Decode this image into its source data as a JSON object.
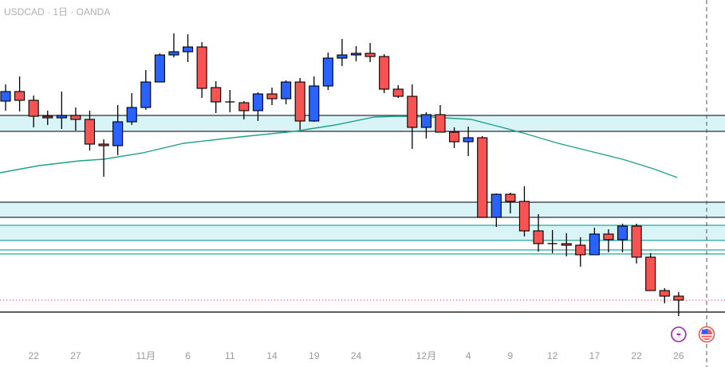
{
  "header": {
    "title": "USDCAD · 1日 · OANDA"
  },
  "colors": {
    "up": "#2962ff",
    "down": "#f85353",
    "zone_fill": "#d8f4f6",
    "zone_border_dark": "#2a2e39",
    "zone_border_teal": "#26a69a",
    "ma": "#22a08c",
    "last_price": "#e53935",
    "event_icon": "#9c27b0"
  },
  "chart_data": {
    "type": "candlestick",
    "title": "USDCAD · 1日 · OANDA",
    "ylim": [
      1.3739,
      1.42
    ],
    "xtick_labels": [
      {
        "index": 2,
        "label": "22"
      },
      {
        "index": 5,
        "label": "27"
      },
      {
        "index": 10,
        "label": "11月"
      },
      {
        "index": 13,
        "label": "6"
      },
      {
        "index": 16,
        "label": "11"
      },
      {
        "index": 19,
        "label": "14"
      },
      {
        "index": 22,
        "label": "19"
      },
      {
        "index": 25,
        "label": "24"
      },
      {
        "index": 30,
        "label": "12月"
      },
      {
        "index": 33,
        "label": "4"
      },
      {
        "index": 36,
        "label": "9"
      },
      {
        "index": 39,
        "label": "12"
      },
      {
        "index": 42,
        "label": "17"
      },
      {
        "index": 45,
        "label": "22"
      },
      {
        "index": 48,
        "label": "26"
      }
    ],
    "ohlc": [
      [
        1.4073,
        1.4094,
        1.4061,
        1.4085
      ],
      [
        1.4085,
        1.4104,
        1.406,
        1.4074
      ],
      [
        1.4074,
        1.408,
        1.404,
        1.4054
      ],
      [
        1.4054,
        1.4061,
        1.4043,
        1.4052
      ],
      [
        1.4052,
        1.4085,
        1.4038,
        1.4055
      ],
      [
        1.4055,
        1.4065,
        1.4036,
        1.405
      ],
      [
        1.405,
        1.4061,
        1.4011,
        1.4019
      ],
      [
        1.4019,
        1.4025,
        1.3978,
        1.4017
      ],
      [
        1.4017,
        1.4068,
        1.4005,
        1.4047
      ],
      [
        1.4047,
        1.4083,
        1.4043,
        1.4065
      ],
      [
        1.4065,
        1.4112,
        1.4062,
        1.4097
      ],
      [
        1.4097,
        1.4133,
        1.4097,
        1.4131
      ],
      [
        1.4131,
        1.4158,
        1.4128,
        1.4135
      ],
      [
        1.4135,
        1.4157,
        1.4122,
        1.4141
      ],
      [
        1.4141,
        1.4147,
        1.4077,
        1.4089
      ],
      [
        1.409,
        1.4098,
        1.4058,
        1.4072
      ],
      [
        1.4072,
        1.4087,
        1.4059,
        1.4072
      ],
      [
        1.4071,
        1.4073,
        1.405,
        1.4061
      ],
      [
        1.4061,
        1.4084,
        1.4048,
        1.4082
      ],
      [
        1.4082,
        1.409,
        1.4068,
        1.4076
      ],
      [
        1.4076,
        1.4099,
        1.4069,
        1.4097
      ],
      [
        1.4097,
        1.4102,
        1.4037,
        1.4048
      ],
      [
        1.4048,
        1.4104,
        1.4047,
        1.4092
      ],
      [
        1.4092,
        1.4134,
        1.4087,
        1.4127
      ],
      [
        1.4127,
        1.4151,
        1.4117,
        1.4131
      ],
      [
        1.4131,
        1.4142,
        1.4123,
        1.4133
      ],
      [
        1.4133,
        1.4146,
        1.4122,
        1.4129
      ],
      [
        1.4129,
        1.4132,
        1.4083,
        1.4088
      ],
      [
        1.4088,
        1.4093,
        1.4077,
        1.4079
      ],
      [
        1.4079,
        1.4094,
        1.4013,
        1.404
      ],
      [
        1.404,
        1.4059,
        1.4026,
        1.4056
      ],
      [
        1.4056,
        1.4068,
        1.4034,
        1.4034
      ],
      [
        1.4034,
        1.404,
        1.4014,
        1.4022
      ],
      [
        1.4022,
        1.4041,
        1.4004,
        1.4027
      ],
      [
        1.4027,
        1.4029,
        1.3927,
        1.3927
      ],
      [
        1.3927,
        1.3957,
        1.3915,
        1.3956
      ],
      [
        1.3956,
        1.3958,
        1.3932,
        1.3947
      ],
      [
        1.3947,
        1.3966,
        1.3903,
        1.391
      ],
      [
        1.391,
        1.3931,
        1.3884,
        1.3894
      ],
      [
        1.3894,
        1.3911,
        1.3882,
        1.3894
      ],
      [
        1.3894,
        1.3907,
        1.3878,
        1.3892
      ],
      [
        1.3892,
        1.3902,
        1.3865,
        1.388
      ],
      [
        1.388,
        1.3914,
        1.388,
        1.3906
      ],
      [
        1.3906,
        1.3912,
        1.3883,
        1.3899
      ],
      [
        1.3899,
        1.3919,
        1.3883,
        1.3916
      ],
      [
        1.3916,
        1.3919,
        1.3869,
        1.3877
      ],
      [
        1.3877,
        1.3882,
        1.3835,
        1.3835
      ],
      [
        1.3835,
        1.3838,
        1.3819,
        1.3828
      ],
      [
        1.3828,
        1.3833,
        1.3803,
        1.3823
      ]
    ],
    "moving_average": [
      [
        -0.4,
        1.3983
      ],
      [
        2.4,
        1.3992
      ],
      [
        5.3,
        1.3998
      ],
      [
        7,
        1.4
      ],
      [
        9.8,
        1.4008
      ],
      [
        12.7,
        1.402
      ],
      [
        16.7,
        1.4028
      ],
      [
        20.6,
        1.4035
      ],
      [
        23.5,
        1.4043
      ],
      [
        26.3,
        1.4053
      ],
      [
        28,
        1.4054
      ],
      [
        30.3,
        1.4053
      ],
      [
        33.2,
        1.405
      ],
      [
        35.4,
        1.404
      ],
      [
        37.1,
        1.4032
      ],
      [
        39.4,
        1.402
      ],
      [
        41.7,
        1.401
      ],
      [
        44,
        1.4
      ],
      [
        46.2,
        1.3988
      ],
      [
        47.9,
        1.3977
      ]
    ],
    "zones": [
      {
        "top": 1.4055,
        "bottom": 1.4035,
        "border": "dark"
      },
      {
        "top": 1.3946,
        "bottom": 1.3927,
        "border": "dark"
      },
      {
        "top": 1.3917,
        "bottom": 1.3898,
        "border": "teal"
      }
    ],
    "hlines": [
      {
        "price": 1.3886,
        "style": "teal"
      },
      {
        "price": 1.3881,
        "style": "teal"
      },
      {
        "price": 1.3808,
        "style": "black"
      },
      {
        "price": 1.3823,
        "style": "last-price-dotted"
      }
    ],
    "session_break_index": 50.0,
    "events": [
      {
        "index": 48,
        "icon": "lightning-icon"
      },
      {
        "index": 50.0,
        "icon": "us-flag-icon"
      }
    ]
  }
}
